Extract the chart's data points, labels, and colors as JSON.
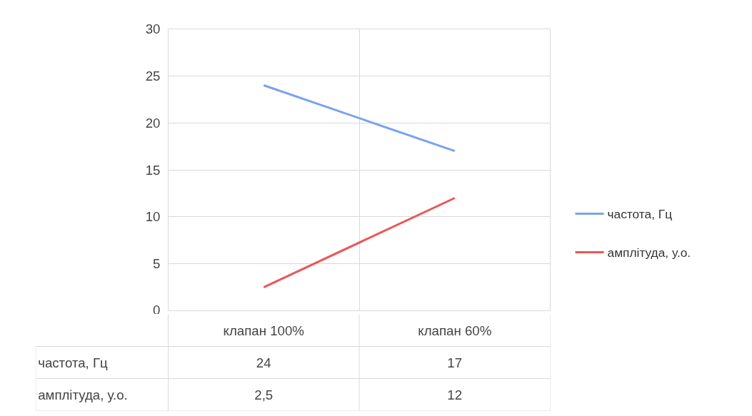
{
  "chart_data": {
    "type": "line",
    "categories": [
      "клапан 100%",
      "клапан 60%"
    ],
    "series": [
      {
        "name": "частота, Гц",
        "color": "#7aa2ee",
        "values": [
          24,
          17
        ],
        "value_labels": [
          "24",
          "17"
        ]
      },
      {
        "name": "амплітуда, у.о.",
        "color": "#eb5656",
        "values": [
          2.5,
          12
        ],
        "value_labels": [
          "2,5",
          "12"
        ]
      }
    ],
    "ylim": [
      0,
      30
    ],
    "yticks": [
      0,
      5,
      10,
      15,
      20,
      25,
      30
    ],
    "grid": true,
    "legend": "right",
    "marker": "none",
    "line_style": "solid"
  }
}
